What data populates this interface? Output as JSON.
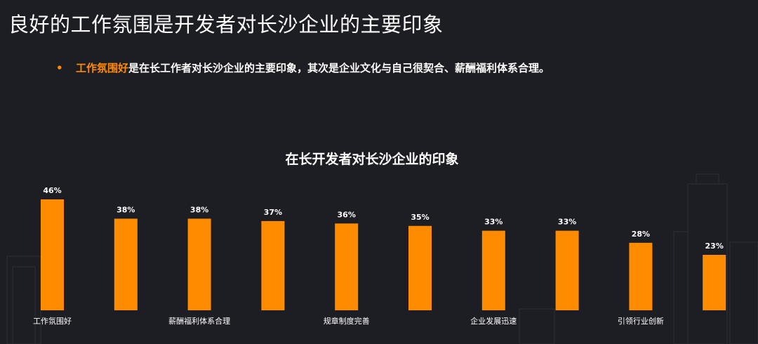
{
  "slide": {
    "title": "良好的工作氛围是开发者对长沙企业的主要印象",
    "bullet_marker": "•",
    "bullet_highlight": "工作氛围好",
    "bullet_rest": "是在长工作者对长沙企业的主要印象，其次是企业文化与自己很契合、薪酬福利体系合理。"
  },
  "colors": {
    "accent": "#ff8c00",
    "background": "#1d1d24",
    "text": "#ffffff"
  },
  "chart_data": {
    "type": "bar",
    "title": "在长开发者对长沙企业的印象",
    "categories": [
      "工作氛围好",
      "",
      "薪酬福利体系合理",
      "",
      "规章制度完善",
      "",
      "企业发展迅速",
      "",
      "引领行业创新",
      ""
    ],
    "values": [
      46,
      38,
      38,
      37,
      36,
      35,
      33,
      33,
      28,
      23
    ],
    "value_labels": [
      "46%",
      "38%",
      "38%",
      "37%",
      "36%",
      "35%",
      "33%",
      "33%",
      "28%",
      "23%"
    ],
    "ylim": [
      0,
      46
    ],
    "grid": false,
    "legend": "none",
    "bar_color": "#ff8c00"
  }
}
